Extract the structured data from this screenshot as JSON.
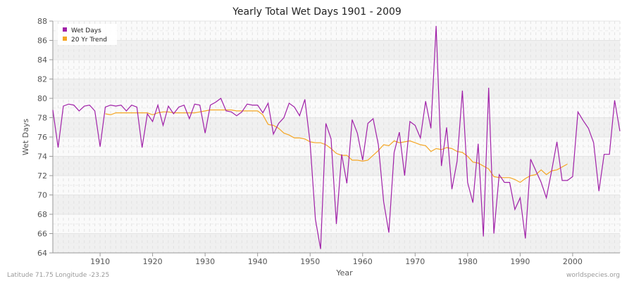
{
  "chart_data": {
    "type": "line",
    "title": "Yearly Total Wet Days 1901 - 2009",
    "xlabel": "Year",
    "ylabel": "Wet Days",
    "xlim": [
      1901,
      2009
    ],
    "ylim": [
      64,
      88
    ],
    "x_ticks": [
      1910,
      1920,
      1930,
      1940,
      1950,
      1960,
      1970,
      1980,
      1990,
      2000
    ],
    "y_ticks": [
      64,
      66,
      68,
      70,
      72,
      74,
      76,
      78,
      80,
      82,
      84,
      86,
      88
    ],
    "grid": true,
    "legend_position": "top-left",
    "series": [
      {
        "name": "Wet Days",
        "color": "#a020a8",
        "x_start": 1901,
        "values": [
          78.8,
          74.9,
          79.2,
          79.4,
          79.3,
          78.7,
          79.2,
          79.3,
          78.7,
          75.0,
          79.1,
          79.3,
          79.2,
          79.3,
          78.7,
          79.3,
          79.1,
          74.9,
          78.4,
          77.6,
          79.3,
          77.2,
          79.2,
          78.4,
          79.1,
          79.3,
          77.9,
          79.4,
          79.3,
          76.4,
          79.3,
          79.6,
          80.0,
          78.7,
          78.6,
          78.2,
          78.6,
          79.4,
          79.3,
          79.3,
          78.5,
          79.5,
          76.3,
          77.4,
          78.0,
          79.5,
          79.1,
          78.2,
          79.9,
          75.4,
          67.5,
          64.4,
          77.4,
          75.8,
          67.0,
          74.2,
          71.2,
          77.8,
          76.4,
          73.6,
          77.4,
          77.9,
          75.2,
          69.3,
          66.1,
          74.4,
          76.5,
          72.0,
          77.6,
          77.2,
          75.9,
          79.7,
          76.9,
          87.5,
          73.0,
          77.0,
          70.6,
          73.5,
          80.8,
          71.3,
          69.2,
          75.3,
          65.7,
          81.1,
          66.0,
          72.1,
          71.3,
          71.3,
          68.5,
          69.7,
          65.5,
          73.7,
          72.5,
          71.3,
          69.7,
          72.5,
          75.5,
          71.5,
          71.5,
          71.9,
          78.6,
          77.7,
          76.9,
          75.4,
          70.4,
          74.2,
          74.2,
          79.8,
          76.6
        ]
      },
      {
        "name": "20 Yr Trend",
        "color": "#f5a623",
        "x_start": 1911,
        "values": [
          78.4,
          78.3,
          78.5,
          78.5,
          78.5,
          78.5,
          78.5,
          78.5,
          78.5,
          78.3,
          78.5,
          78.6,
          78.6,
          78.5,
          78.5,
          78.5,
          78.5,
          78.5,
          78.6,
          78.7,
          78.8,
          78.8,
          78.8,
          78.8,
          78.8,
          78.7,
          78.7,
          78.7,
          78.7,
          78.7,
          78.3,
          77.3,
          77.2,
          76.9,
          76.4,
          76.2,
          75.9,
          75.9,
          75.8,
          75.5,
          75.4,
          75.4,
          75.2,
          74.8,
          74.3,
          74.1,
          74.1,
          73.6,
          73.6,
          73.5,
          73.6,
          74.1,
          74.6,
          75.2,
          75.1,
          75.6,
          75.4,
          75.5,
          75.6,
          75.4,
          75.2,
          75.1,
          74.5,
          74.8,
          74.7,
          74.9,
          74.8,
          74.5,
          74.4,
          74.0,
          73.4,
          73.3,
          73.0,
          72.7,
          71.9,
          71.8,
          71.8,
          71.8,
          71.6,
          71.3,
          71.7,
          72.0,
          72.1,
          72.6,
          72.1,
          72.5,
          72.6,
          72.9,
          73.2
        ]
      }
    ]
  },
  "footer": {
    "location": "Latitude 71.75 Longitude -23.25",
    "credit": "worldspecies.org"
  }
}
